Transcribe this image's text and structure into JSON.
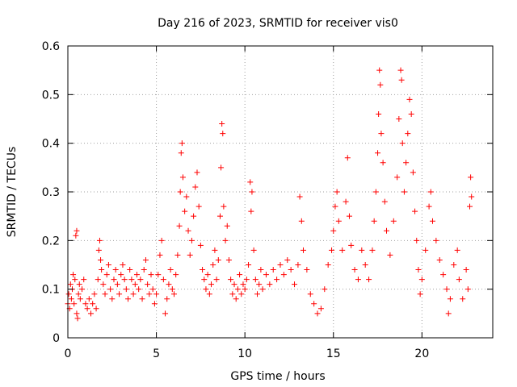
{
  "chart_data": {
    "type": "scatter",
    "title": "Day 216 of 2023, SRMTID for receiver vis0",
    "xlabel": "GPS time / hours",
    "ylabel": "SRMTID / TECUs",
    "xlim": [
      0,
      24
    ],
    "ylim": [
      0,
      0.6
    ],
    "xticks": [
      0,
      5,
      10,
      15,
      20
    ],
    "yticks": [
      0,
      0.1,
      0.2,
      0.3,
      0.4,
      0.5,
      0.6
    ],
    "xtick_labels": [
      "0",
      "5",
      "10",
      "15",
      "20"
    ],
    "ytick_labels": [
      "0",
      "0.1",
      "0.2",
      "0.3",
      "0.4",
      "0.5",
      "0.6"
    ],
    "grid": true,
    "marker": "+",
    "marker_color": "#ff0000",
    "series": [
      {
        "name": "vis0",
        "points": [
          [
            0.0,
            0.07
          ],
          [
            0.05,
            0.09
          ],
          [
            0.1,
            0.06
          ],
          [
            0.15,
            0.11
          ],
          [
            0.2,
            0.08
          ],
          [
            0.25,
            0.1
          ],
          [
            0.3,
            0.13
          ],
          [
            0.35,
            0.07
          ],
          [
            0.4,
            0.12
          ],
          [
            0.45,
            0.21
          ],
          [
            0.5,
            0.22
          ],
          [
            0.5,
            0.05
          ],
          [
            0.55,
            0.04
          ],
          [
            0.6,
            0.09
          ],
          [
            0.65,
            0.11
          ],
          [
            0.7,
            0.08
          ],
          [
            0.8,
            0.1
          ],
          [
            0.9,
            0.12
          ],
          [
            1.0,
            0.07
          ],
          [
            1.1,
            0.06
          ],
          [
            1.2,
            0.08
          ],
          [
            1.3,
            0.05
          ],
          [
            1.4,
            0.07
          ],
          [
            1.5,
            0.09
          ],
          [
            1.6,
            0.06
          ],
          [
            1.7,
            0.12
          ],
          [
            1.75,
            0.18
          ],
          [
            1.8,
            0.2
          ],
          [
            1.85,
            0.16
          ],
          [
            1.9,
            0.14
          ],
          [
            2.0,
            0.11
          ],
          [
            2.1,
            0.09
          ],
          [
            2.2,
            0.13
          ],
          [
            2.3,
            0.15
          ],
          [
            2.4,
            0.1
          ],
          [
            2.5,
            0.08
          ],
          [
            2.6,
            0.12
          ],
          [
            2.7,
            0.14
          ],
          [
            2.8,
            0.11
          ],
          [
            2.9,
            0.09
          ],
          [
            3.0,
            0.13
          ],
          [
            3.1,
            0.15
          ],
          [
            3.2,
            0.12
          ],
          [
            3.3,
            0.1
          ],
          [
            3.4,
            0.08
          ],
          [
            3.5,
            0.14
          ],
          [
            3.6,
            0.12
          ],
          [
            3.7,
            0.09
          ],
          [
            3.8,
            0.11
          ],
          [
            3.9,
            0.13
          ],
          [
            4.0,
            0.1
          ],
          [
            4.1,
            0.12
          ],
          [
            4.2,
            0.08
          ],
          [
            4.3,
            0.14
          ],
          [
            4.4,
            0.16
          ],
          [
            4.5,
            0.11
          ],
          [
            4.6,
            0.09
          ],
          [
            4.7,
            0.13
          ],
          [
            4.8,
            0.1
          ],
          [
            4.9,
            0.07
          ],
          [
            5.0,
            0.09
          ],
          [
            5.1,
            0.13
          ],
          [
            5.2,
            0.17
          ],
          [
            5.3,
            0.2
          ],
          [
            5.4,
            0.12
          ],
          [
            5.5,
            0.05
          ],
          [
            5.6,
            0.08
          ],
          [
            5.7,
            0.11
          ],
          [
            5.8,
            0.14
          ],
          [
            5.9,
            0.1
          ],
          [
            6.0,
            0.09
          ],
          [
            6.1,
            0.13
          ],
          [
            6.2,
            0.17
          ],
          [
            6.3,
            0.23
          ],
          [
            6.35,
            0.3
          ],
          [
            6.4,
            0.38
          ],
          [
            6.45,
            0.4
          ],
          [
            6.5,
            0.33
          ],
          [
            6.6,
            0.26
          ],
          [
            6.7,
            0.29
          ],
          [
            6.8,
            0.22
          ],
          [
            6.9,
            0.17
          ],
          [
            7.0,
            0.2
          ],
          [
            7.1,
            0.25
          ],
          [
            7.2,
            0.31
          ],
          [
            7.3,
            0.34
          ],
          [
            7.4,
            0.27
          ],
          [
            7.5,
            0.19
          ],
          [
            7.6,
            0.14
          ],
          [
            7.7,
            0.12
          ],
          [
            7.8,
            0.1
          ],
          [
            7.9,
            0.13
          ],
          [
            8.0,
            0.09
          ],
          [
            8.1,
            0.11
          ],
          [
            8.2,
            0.15
          ],
          [
            8.3,
            0.18
          ],
          [
            8.4,
            0.12
          ],
          [
            8.5,
            0.16
          ],
          [
            8.6,
            0.25
          ],
          [
            8.65,
            0.35
          ],
          [
            8.7,
            0.44
          ],
          [
            8.75,
            0.42
          ],
          [
            8.8,
            0.27
          ],
          [
            8.9,
            0.2
          ],
          [
            9.0,
            0.23
          ],
          [
            9.1,
            0.16
          ],
          [
            9.2,
            0.12
          ],
          [
            9.3,
            0.09
          ],
          [
            9.4,
            0.11
          ],
          [
            9.5,
            0.08
          ],
          [
            9.6,
            0.1
          ],
          [
            9.7,
            0.13
          ],
          [
            9.8,
            0.09
          ],
          [
            9.9,
            0.11
          ],
          [
            10.0,
            0.1
          ],
          [
            10.1,
            0.12
          ],
          [
            10.2,
            0.15
          ],
          [
            10.3,
            0.32
          ],
          [
            10.35,
            0.26
          ],
          [
            10.4,
            0.3
          ],
          [
            10.5,
            0.18
          ],
          [
            10.6,
            0.12
          ],
          [
            10.7,
            0.09
          ],
          [
            10.8,
            0.11
          ],
          [
            10.9,
            0.14
          ],
          [
            11.0,
            0.1
          ],
          [
            11.2,
            0.13
          ],
          [
            11.4,
            0.11
          ],
          [
            11.6,
            0.14
          ],
          [
            11.8,
            0.12
          ],
          [
            12.0,
            0.15
          ],
          [
            12.2,
            0.13
          ],
          [
            12.4,
            0.16
          ],
          [
            12.6,
            0.14
          ],
          [
            12.8,
            0.11
          ],
          [
            13.0,
            0.15
          ],
          [
            13.1,
            0.29
          ],
          [
            13.2,
            0.24
          ],
          [
            13.3,
            0.18
          ],
          [
            13.5,
            0.14
          ],
          [
            13.7,
            0.09
          ],
          [
            13.9,
            0.07
          ],
          [
            14.1,
            0.05
          ],
          [
            14.3,
            0.06
          ],
          [
            14.5,
            0.1
          ],
          [
            14.7,
            0.15
          ],
          [
            14.9,
            0.18
          ],
          [
            15.0,
            0.22
          ],
          [
            15.1,
            0.27
          ],
          [
            15.2,
            0.3
          ],
          [
            15.3,
            0.24
          ],
          [
            15.5,
            0.18
          ],
          [
            15.7,
            0.28
          ],
          [
            15.8,
            0.37
          ],
          [
            15.9,
            0.25
          ],
          [
            16.0,
            0.19
          ],
          [
            16.2,
            0.14
          ],
          [
            16.4,
            0.12
          ],
          [
            16.6,
            0.18
          ],
          [
            16.8,
            0.15
          ],
          [
            17.0,
            0.12
          ],
          [
            17.2,
            0.18
          ],
          [
            17.3,
            0.24
          ],
          [
            17.4,
            0.3
          ],
          [
            17.5,
            0.38
          ],
          [
            17.55,
            0.46
          ],
          [
            17.6,
            0.55
          ],
          [
            17.65,
            0.52
          ],
          [
            17.7,
            0.42
          ],
          [
            17.8,
            0.36
          ],
          [
            17.9,
            0.28
          ],
          [
            18.0,
            0.22
          ],
          [
            18.2,
            0.17
          ],
          [
            18.4,
            0.24
          ],
          [
            18.6,
            0.33
          ],
          [
            18.7,
            0.45
          ],
          [
            18.8,
            0.55
          ],
          [
            18.85,
            0.53
          ],
          [
            18.9,
            0.4
          ],
          [
            19.0,
            0.3
          ],
          [
            19.1,
            0.36
          ],
          [
            19.2,
            0.42
          ],
          [
            19.3,
            0.49
          ],
          [
            19.4,
            0.46
          ],
          [
            19.5,
            0.34
          ],
          [
            19.6,
            0.26
          ],
          [
            19.7,
            0.2
          ],
          [
            19.8,
            0.14
          ],
          [
            19.9,
            0.09
          ],
          [
            20.0,
            0.12
          ],
          [
            20.2,
            0.18
          ],
          [
            20.4,
            0.27
          ],
          [
            20.5,
            0.3
          ],
          [
            20.6,
            0.24
          ],
          [
            20.8,
            0.2
          ],
          [
            21.0,
            0.16
          ],
          [
            21.2,
            0.13
          ],
          [
            21.4,
            0.1
          ],
          [
            21.5,
            0.05
          ],
          [
            21.6,
            0.08
          ],
          [
            21.8,
            0.15
          ],
          [
            22.0,
            0.18
          ],
          [
            22.1,
            0.12
          ],
          [
            22.3,
            0.08
          ],
          [
            22.5,
            0.14
          ],
          [
            22.6,
            0.1
          ],
          [
            22.7,
            0.27
          ],
          [
            22.75,
            0.33
          ],
          [
            22.8,
            0.29
          ]
        ]
      }
    ]
  }
}
